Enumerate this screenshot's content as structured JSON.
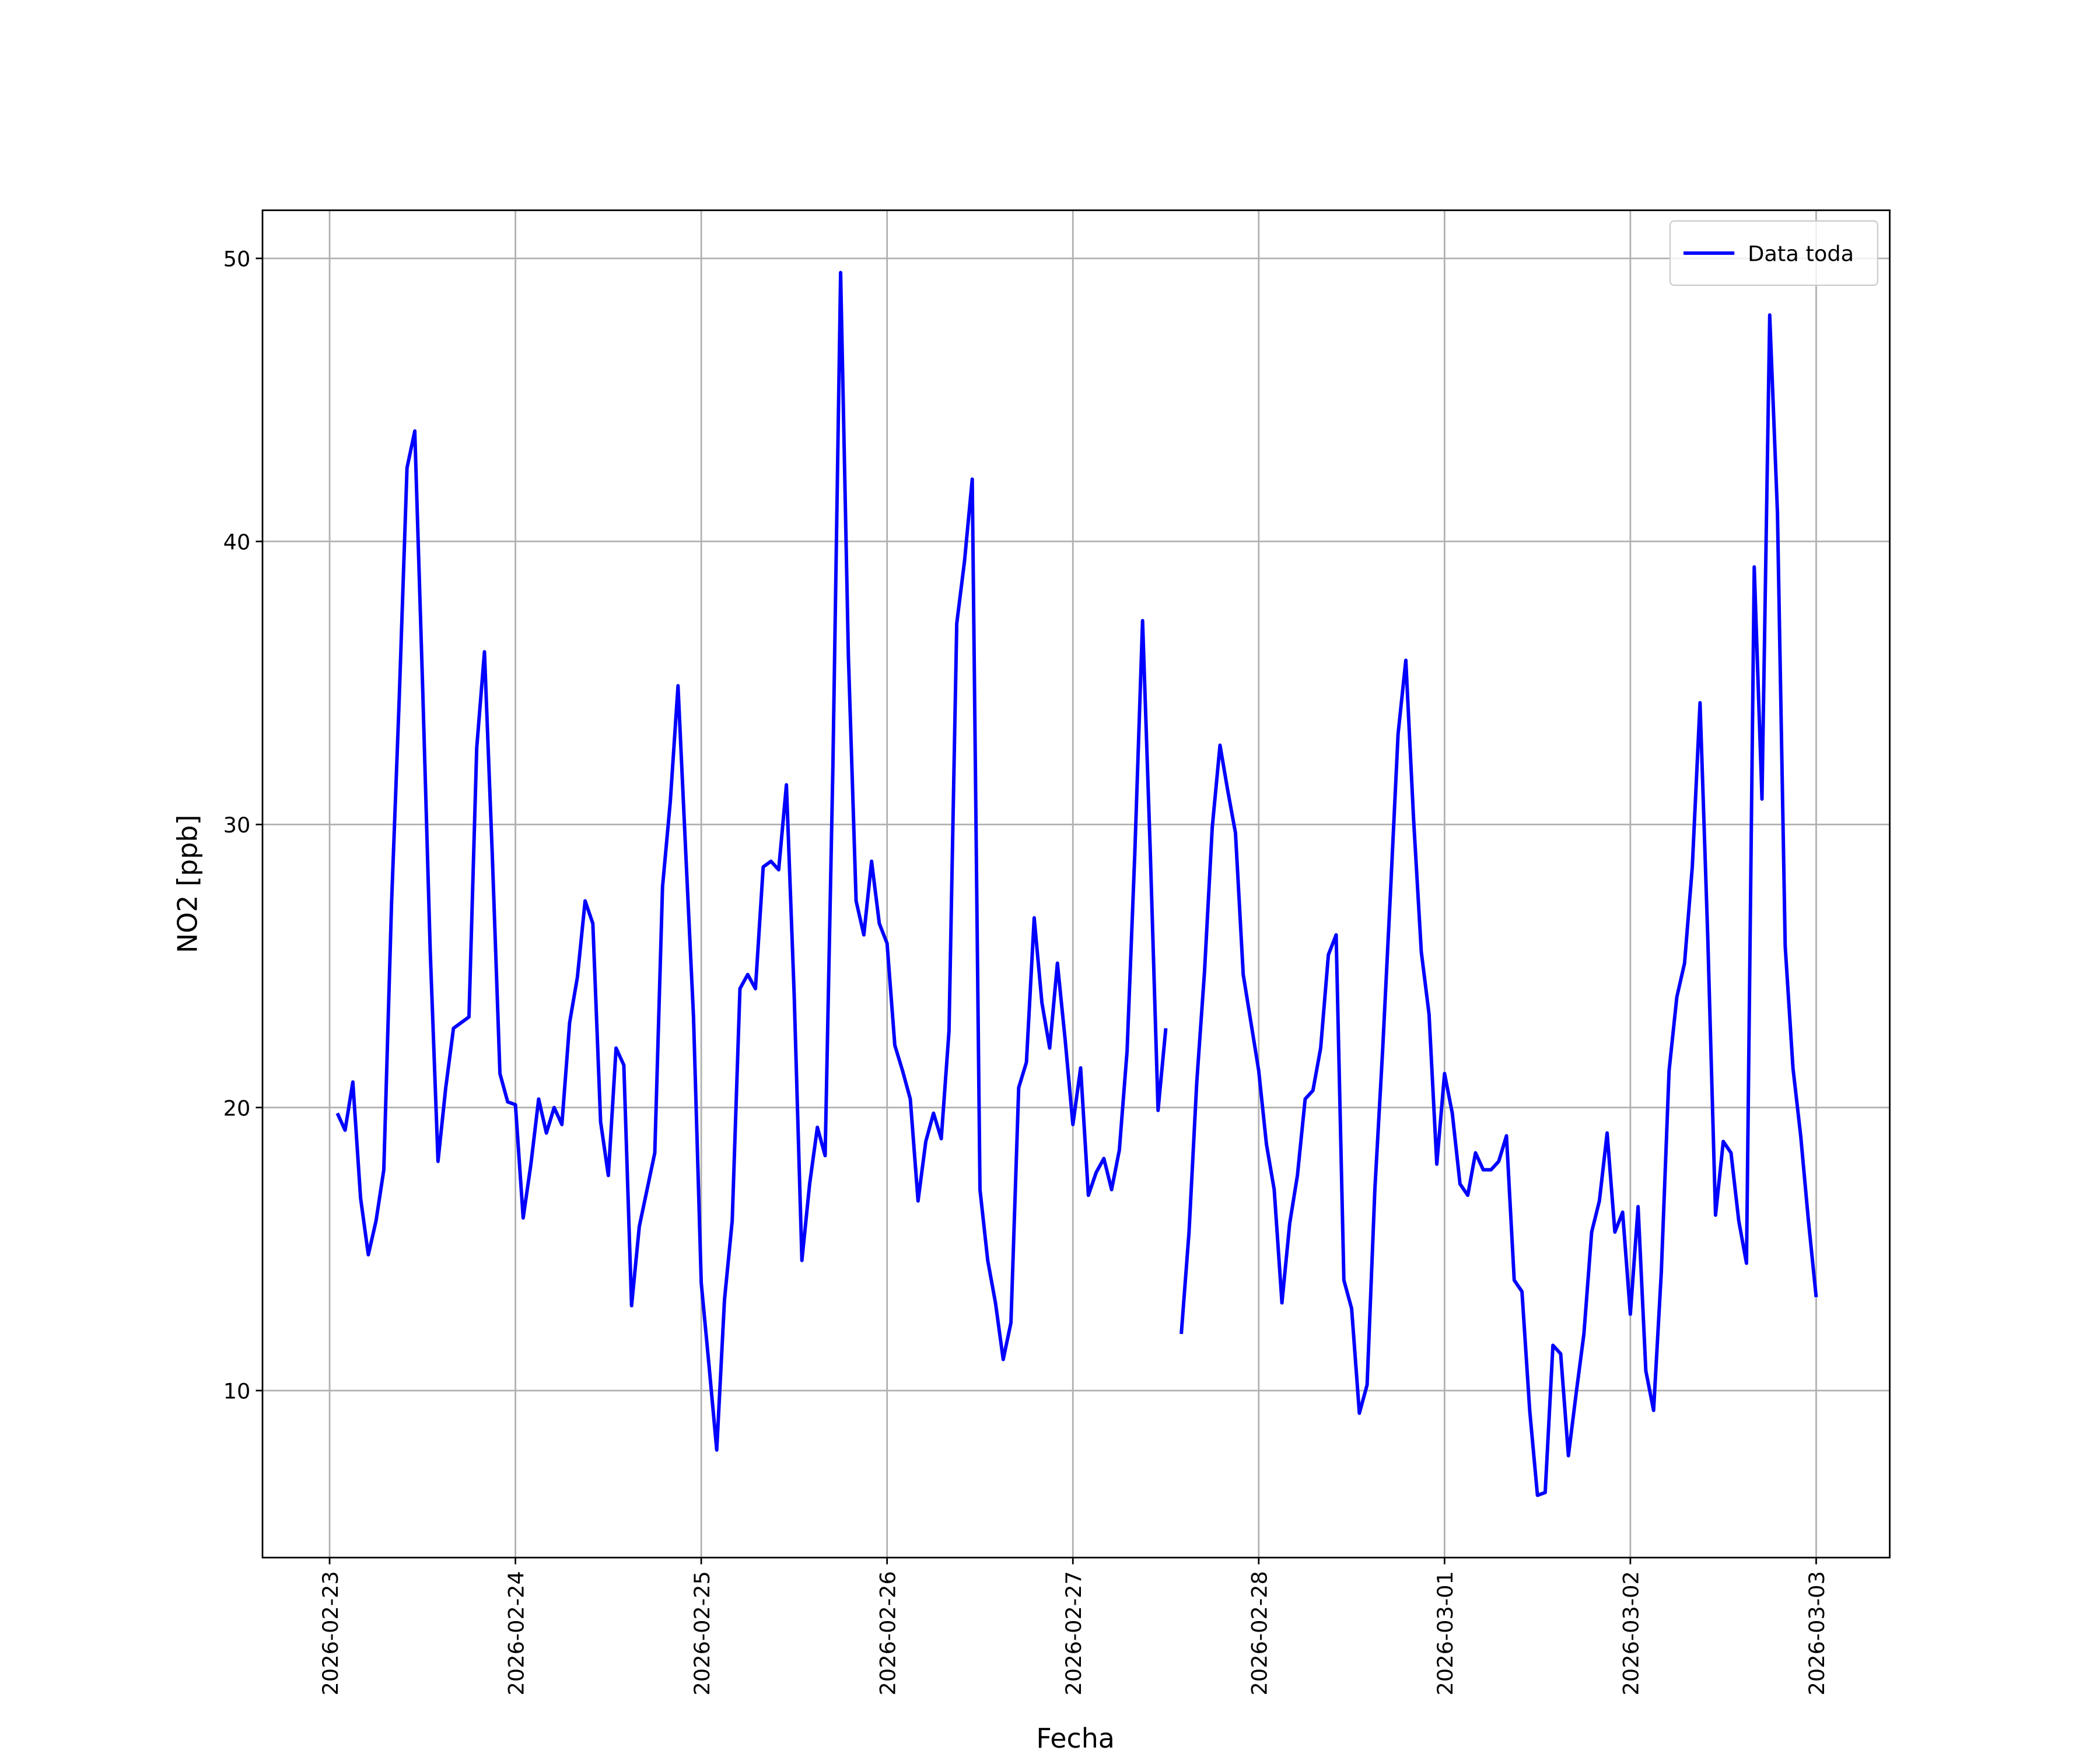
{
  "chart_data": {
    "type": "line",
    "xlabel": "Fecha",
    "ylabel": "NO2 [ppb]",
    "x": [
      "2026-02-23T01:00",
      "2026-02-23T02:00",
      "2026-02-23T03:00",
      "2026-02-23T04:00",
      "2026-02-23T05:00",
      "2026-02-23T06:00",
      "2026-02-23T07:00",
      "2026-02-23T08:00",
      "2026-02-23T09:00",
      "2026-02-23T10:00",
      "2026-02-23T11:00",
      "2026-02-23T12:00",
      "2026-02-23T13:00",
      "2026-02-23T14:00",
      "2026-02-23T15:00",
      "2026-02-23T16:00",
      "2026-02-23T17:00",
      "2026-02-23T18:00",
      "2026-02-23T19:00",
      "2026-02-23T20:00",
      "2026-02-23T21:00",
      "2026-02-23T22:00",
      "2026-02-23T23:00",
      "2026-02-24T00:00",
      "2026-02-24T01:00",
      "2026-02-24T02:00",
      "2026-02-24T03:00",
      "2026-02-24T04:00",
      "2026-02-24T05:00",
      "2026-02-24T06:00",
      "2026-02-24T07:00",
      "2026-02-24T08:00",
      "2026-02-24T09:00",
      "2026-02-24T10:00",
      "2026-02-24T11:00",
      "2026-02-24T12:00",
      "2026-02-24T13:00",
      "2026-02-24T14:00",
      "2026-02-24T15:00",
      "2026-02-24T16:00",
      "2026-02-24T17:00",
      "2026-02-24T18:00",
      "2026-02-24T19:00",
      "2026-02-24T20:00",
      "2026-02-24T21:00",
      "2026-02-24T22:00",
      "2026-02-24T23:00",
      "2026-02-25T00:00",
      "2026-02-25T01:00",
      "2026-02-25T02:00",
      "2026-02-25T03:00",
      "2026-02-25T04:00",
      "2026-02-25T05:00",
      "2026-02-25T06:00",
      "2026-02-25T07:00",
      "2026-02-25T08:00",
      "2026-02-25T09:00",
      "2026-02-25T10:00",
      "2026-02-25T11:00",
      "2026-02-25T12:00",
      "2026-02-25T13:00",
      "2026-02-25T14:00",
      "2026-02-25T15:00",
      "2026-02-25T16:00",
      "2026-02-25T17:00",
      "2026-02-25T18:00",
      "2026-02-25T19:00",
      "2026-02-25T20:00",
      "2026-02-25T21:00",
      "2026-02-25T22:00",
      "2026-02-25T23:00",
      "2026-02-26T00:00",
      "2026-02-26T01:00",
      "2026-02-26T02:00",
      "2026-02-26T03:00",
      "2026-02-26T04:00",
      "2026-02-26T05:00",
      "2026-02-26T06:00",
      "2026-02-26T07:00",
      "2026-02-26T08:00",
      "2026-02-26T09:00",
      "2026-02-26T10:00",
      "2026-02-26T11:00",
      "2026-02-26T12:00",
      "2026-02-26T13:00",
      "2026-02-26T14:00",
      "2026-02-26T15:00",
      "2026-02-26T16:00",
      "2026-02-26T17:00",
      "2026-02-26T18:00",
      "2026-02-26T19:00",
      "2026-02-26T20:00",
      "2026-02-26T21:00",
      "2026-02-26T22:00",
      "2026-02-26T23:00",
      "2026-02-27T00:00",
      "2026-02-27T01:00",
      "2026-02-27T02:00",
      "2026-02-27T03:00",
      "2026-02-27T04:00",
      "2026-02-27T05:00",
      "2026-02-27T06:00",
      "2026-02-27T07:00",
      "2026-02-27T08:00",
      "2026-02-27T09:00",
      "2026-02-27T10:00",
      "2026-02-27T11:00",
      "2026-02-27T12:00",
      "2026-02-27T13:00",
      "2026-02-27T14:00",
      "2026-02-27T15:00",
      "2026-02-27T16:00",
      "2026-02-27T17:00",
      "2026-02-27T18:00",
      "2026-02-27T19:00",
      "2026-02-27T20:00",
      "2026-02-27T21:00",
      "2026-02-27T22:00",
      "2026-02-27T23:00",
      "2026-02-28T00:00",
      "2026-02-28T01:00",
      "2026-02-28T02:00",
      "2026-02-28T03:00",
      "2026-02-28T04:00",
      "2026-02-28T05:00",
      "2026-02-28T06:00",
      "2026-02-28T07:00",
      "2026-02-28T08:00",
      "2026-02-28T09:00",
      "2026-02-28T10:00",
      "2026-02-28T11:00",
      "2026-02-28T12:00",
      "2026-02-28T13:00",
      "2026-02-28T14:00",
      "2026-02-28T15:00",
      "2026-02-28T16:00",
      "2026-02-28T17:00",
      "2026-02-28T18:00",
      "2026-02-28T19:00",
      "2026-02-28T20:00",
      "2026-02-28T21:00",
      "2026-02-28T22:00",
      "2026-02-28T23:00",
      "2026-03-01T00:00",
      "2026-03-01T01:00",
      "2026-03-01T02:00",
      "2026-03-01T03:00",
      "2026-03-01T04:00",
      "2026-03-01T05:00",
      "2026-03-01T06:00",
      "2026-03-01T07:00",
      "2026-03-01T08:00",
      "2026-03-01T09:00",
      "2026-03-01T10:00",
      "2026-03-01T11:00",
      "2026-03-01T12:00",
      "2026-03-01T13:00",
      "2026-03-01T14:00",
      "2026-03-01T15:00",
      "2026-03-01T16:00",
      "2026-03-01T17:00",
      "2026-03-01T18:00",
      "2026-03-01T19:00",
      "2026-03-01T20:00",
      "2026-03-01T21:00",
      "2026-03-01T22:00",
      "2026-03-01T23:00",
      "2026-03-02T00:00",
      "2026-03-02T01:00",
      "2026-03-02T02:00",
      "2026-03-02T03:00",
      "2026-03-02T04:00",
      "2026-03-02T05:00",
      "2026-03-02T06:00",
      "2026-03-02T07:00",
      "2026-03-02T08:00",
      "2026-03-02T09:00",
      "2026-03-02T10:00",
      "2026-03-02T11:00",
      "2026-03-02T12:00",
      "2026-03-02T13:00",
      "2026-03-02T14:00",
      "2026-03-02T15:00",
      "2026-03-02T16:00",
      "2026-03-02T17:00",
      "2026-03-02T18:00",
      "2026-03-02T19:00",
      "2026-03-02T20:00",
      "2026-03-02T21:00",
      "2026-03-02T22:00",
      "2026-03-02T23:00",
      "2026-03-03T00:00"
    ],
    "series": [
      {
        "name": "Data toda",
        "color": "#0000ff",
        "values": [
          19.8,
          19.2,
          20.9,
          16.8,
          14.8,
          16.0,
          17.8,
          27.2,
          34.5,
          42.6,
          43.9,
          35,
          25.5,
          18.1,
          20.7,
          22.8,
          23.0,
          23.2,
          32.7,
          36.1,
          29,
          21.2,
          20.2,
          20.1,
          16.1,
          18.0,
          20.3,
          19.1,
          20.0,
          19.4,
          23.0,
          24.6,
          27.3,
          26.5,
          19.5,
          17.6,
          22.1,
          21.5,
          13.0,
          15.8,
          17.1,
          18.4,
          27.8,
          30.8,
          34.9,
          29,
          23.2,
          13.8,
          10.9,
          7.9,
          13.2,
          16.0,
          24.2,
          24.7,
          24.2,
          28.5,
          28.7,
          28.4,
          31.4,
          24,
          14.6,
          17.3,
          19.3,
          18.3,
          32,
          49.5,
          36,
          27.3,
          26.1,
          28.7,
          26.5,
          25.8,
          22.2,
          21.3,
          20.3,
          16.7,
          18.8,
          19.8,
          18.9,
          22.7,
          37.1,
          39.3,
          42.2,
          17.1,
          14.6,
          13.1,
          11.1,
          12.4,
          20.7,
          21.6,
          26.7,
          23.7,
          22.1,
          25.1,
          22.4,
          19.4,
          21.4,
          16.9,
          17.7,
          18.2,
          17.1,
          18.5,
          22,
          29,
          37.2,
          29,
          19.9,
          22.8,
          null,
          12.0,
          15.6,
          20.9,
          24.8,
          29.9,
          32.8,
          31.2,
          29.7,
          24.7,
          23,
          21.3,
          18.7,
          17.1,
          13.1,
          15.9,
          17.6,
          20.3,
          20.6,
          22.1,
          25.4,
          26.1,
          13.9,
          12.9,
          9.2,
          10.2,
          17.1,
          22,
          27.5,
          33.2,
          35.8,
          30.2,
          25.5,
          23.3,
          18.0,
          21.2,
          19.8,
          17.3,
          16.9,
          18.4,
          17.8,
          17.8,
          18.1,
          19.0,
          13.9,
          13.5,
          9.3,
          6.3,
          6.4,
          11.6,
          11.3,
          7.7,
          9.9,
          12,
          15.6,
          16.7,
          19.1,
          15.6,
          16.3,
          12.7,
          16.5,
          10.7,
          9.3,
          14.2,
          21.3,
          23.9,
          25.1,
          28.5,
          34.3,
          26,
          16.2,
          18.8,
          18.4,
          16,
          14.5,
          39.1,
          30.9,
          48,
          41,
          25.7,
          21.4,
          19,
          16,
          13.3
        ]
      }
    ],
    "xlim": [
      "2026-02-22T15:20",
      "2026-03-03T09:30"
    ],
    "xticks": [
      "2026-02-23",
      "2026-02-24",
      "2026-02-25",
      "2026-02-26",
      "2026-02-27",
      "2026-02-28",
      "2026-03-01",
      "2026-03-02",
      "2026-03-03"
    ],
    "ylim": [
      4.1,
      51.7
    ],
    "yticks": [
      10,
      20,
      30,
      40,
      50
    ],
    "grid": true,
    "legend": "upper right"
  }
}
